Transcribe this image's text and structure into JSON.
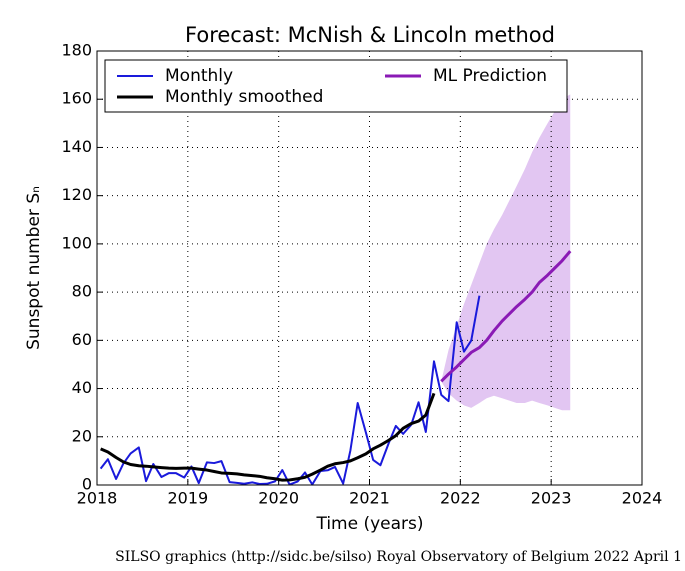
{
  "chart_data": {
    "type": "line",
    "title": "Forecast: McNish & Lincoln method",
    "x_label": "Time (years)",
    "y_label": "Sunspot number Sₙ",
    "footer": "SILSO graphics (http://sidc.be/silso)  Royal Observatory of Belgium  2022 April 1",
    "xlim": [
      2018,
      2024
    ],
    "xticks": [
      2018,
      2019,
      2020,
      2021,
      2022,
      2023,
      2024
    ],
    "ylim": [
      0,
      180
    ],
    "yticks": [
      0,
      20,
      40,
      60,
      80,
      100,
      120,
      140,
      160,
      180
    ],
    "grid": true,
    "legend": "upper center",
    "series": [
      {
        "name": "Monthly",
        "color": "#1a1adb",
        "x": [
          2018.04,
          2018.12,
          2018.21,
          2018.29,
          2018.37,
          2018.46,
          2018.54,
          2018.62,
          2018.71,
          2018.79,
          2018.87,
          2018.96,
          2019.04,
          2019.12,
          2019.21,
          2019.29,
          2019.37,
          2019.46,
          2019.54,
          2019.62,
          2019.71,
          2019.79,
          2019.87,
          2019.96,
          2020.04,
          2020.12,
          2020.21,
          2020.29,
          2020.37,
          2020.46,
          2020.54,
          2020.62,
          2020.71,
          2020.79,
          2020.87,
          2020.96,
          2021.04,
          2021.12,
          2021.21,
          2021.29,
          2021.37,
          2021.46,
          2021.54,
          2021.62,
          2021.71,
          2021.79,
          2021.87,
          2021.96,
          2022.04,
          2022.12,
          2022.21
        ],
        "values": [
          6.8,
          10.7,
          2.5,
          8.9,
          13.1,
          15.6,
          1.6,
          8.7,
          3.3,
          4.9,
          4.9,
          3.1,
          7.7,
          0.8,
          9.4,
          9.1,
          9.9,
          1.2,
          0.9,
          0.5,
          1.1,
          0.4,
          0.5,
          1.5,
          6.2,
          0.2,
          1.5,
          5.2,
          0.2,
          5.8,
          6.1,
          7.5,
          0.6,
          14.4,
          34.0,
          21.8,
          10.4,
          8.2,
          17.2,
          24.5,
          21.2,
          25.0,
          34.3,
          22.0,
          51.3,
          37.4,
          34.8,
          67.5,
          55.3,
          59.9,
          78.5
        ]
      },
      {
        "name": "Monthly smoothed",
        "color": "#000000",
        "x": [
          2018.04,
          2018.12,
          2018.21,
          2018.29,
          2018.37,
          2018.46,
          2018.54,
          2018.62,
          2018.71,
          2018.79,
          2018.87,
          2018.96,
          2019.04,
          2019.12,
          2019.21,
          2019.29,
          2019.37,
          2019.46,
          2019.54,
          2019.62,
          2019.71,
          2019.79,
          2019.87,
          2019.96,
          2020.04,
          2020.12,
          2020.21,
          2020.29,
          2020.37,
          2020.46,
          2020.54,
          2020.62,
          2020.71,
          2020.79,
          2020.87,
          2020.96,
          2021.04,
          2021.12,
          2021.21,
          2021.29,
          2021.37,
          2021.46,
          2021.54,
          2021.62,
          2021.71
        ],
        "values": [
          15.0,
          13.7,
          11.4,
          9.6,
          8.5,
          8.0,
          7.8,
          7.5,
          7.2,
          7.0,
          6.9,
          7.0,
          7.0,
          6.6,
          6.2,
          5.6,
          5.0,
          4.8,
          4.6,
          4.2,
          3.9,
          3.6,
          3.0,
          2.6,
          2.0,
          2.1,
          2.6,
          3.2,
          4.5,
          6.2,
          7.8,
          8.8,
          9.3,
          10.0,
          11.3,
          12.9,
          15.0,
          16.5,
          18.5,
          20.5,
          23.5,
          25.5,
          26.5,
          29.0,
          38.0
        ]
      },
      {
        "name": "ML Prediction",
        "color": "#8a1ab5",
        "band_color": "#e2c6f2",
        "x": [
          2021.79,
          2021.87,
          2021.96,
          2022.04,
          2022.12,
          2022.21,
          2022.29,
          2022.37,
          2022.46,
          2022.54,
          2022.62,
          2022.71,
          2022.79,
          2022.87,
          2022.96,
          2023.04,
          2023.12,
          2023.21
        ],
        "values": [
          43,
          46,
          49,
          52,
          55,
          57,
          60,
          64,
          68,
          71,
          74,
          77,
          80,
          84,
          87,
          90,
          93,
          97
        ],
        "upper": [
          43,
          56,
          66,
          75,
          83,
          92,
          100,
          106,
          112,
          118,
          124,
          131,
          138,
          144,
          150,
          155,
          160,
          162
        ],
        "lower": [
          43,
          38,
          35,
          33,
          32,
          34,
          36,
          37,
          36,
          35,
          34,
          34,
          35,
          34,
          33,
          32,
          31,
          31
        ]
      }
    ]
  }
}
